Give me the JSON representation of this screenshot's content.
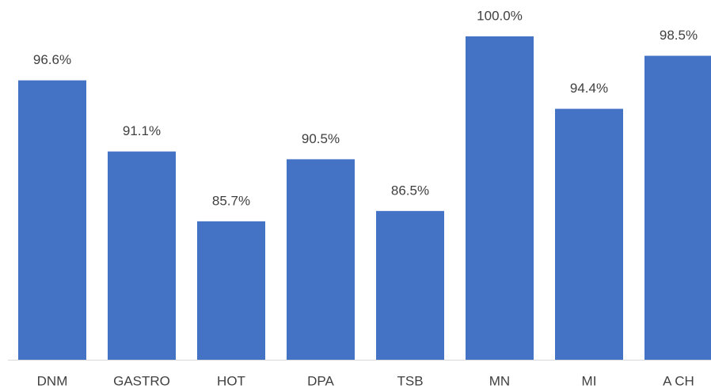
{
  "chart_data": {
    "type": "bar",
    "categories": [
      "DNM",
      "GASTRO",
      "HOT",
      "DPA",
      "TSB",
      "MN",
      "MI",
      "A CH"
    ],
    "values": [
      96.6,
      91.1,
      85.7,
      90.5,
      86.5,
      100.0,
      94.4,
      98.5
    ],
    "value_labels": [
      "96.6%",
      "91.1%",
      "85.7%",
      "90.5%",
      "86.5%",
      "100.0%",
      "94.4%",
      "98.5%"
    ],
    "color": "#4472c4",
    "ylim": [
      75,
      100
    ]
  }
}
